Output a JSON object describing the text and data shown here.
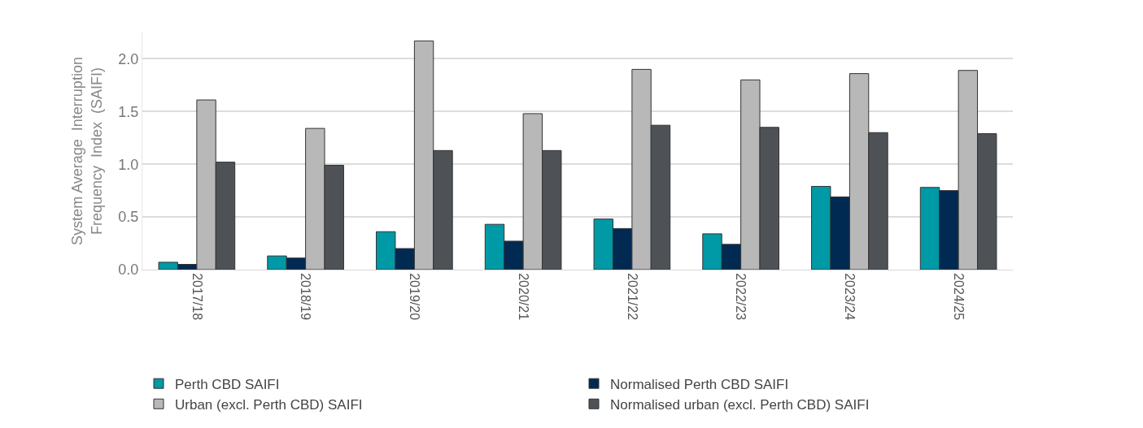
{
  "chart_data": {
    "type": "bar",
    "ylabel": "System Average  Interruption\nFrequency  Index  (SAIFI)",
    "categories": [
      "2017/18",
      "2018/19",
      "2019/20",
      "2020/21",
      "2021/22",
      "2022/23",
      "2023/24",
      "2024/25"
    ],
    "series": [
      {
        "name": "Perth CBD SAIFI",
        "color": "#0099a6",
        "values": [
          0.07,
          0.13,
          0.36,
          0.43,
          0.48,
          0.34,
          0.79,
          0.78
        ]
      },
      {
        "name": "Normalised Perth CBD SAIFI",
        "color": "#002a52",
        "values": [
          0.05,
          0.11,
          0.2,
          0.27,
          0.39,
          0.24,
          0.69,
          0.75
        ]
      },
      {
        "name": "Urban (excl. Perth CBD) SAIFI",
        "color": "#b8b8b8",
        "values": [
          1.61,
          1.34,
          2.17,
          1.48,
          1.9,
          1.8,
          1.86,
          1.89
        ]
      },
      {
        "name": "Normalised urban (excl. Perth CBD) SAIFI",
        "color": "#4e5256",
        "values": [
          1.02,
          0.99,
          1.13,
          1.13,
          1.37,
          1.35,
          1.3,
          1.29
        ]
      }
    ],
    "ylim": [
      0,
      2.25
    ],
    "yticks": [
      {
        "value": 0,
        "label": "0.0"
      },
      {
        "value": 0.5,
        "label": "0.5"
      },
      {
        "value": 1,
        "label": "1.0"
      },
      {
        "value": 1.5,
        "label": "1.5"
      },
      {
        "value": 2,
        "label": "2.0"
      }
    ],
    "grid": "y",
    "legend": "bottom"
  }
}
